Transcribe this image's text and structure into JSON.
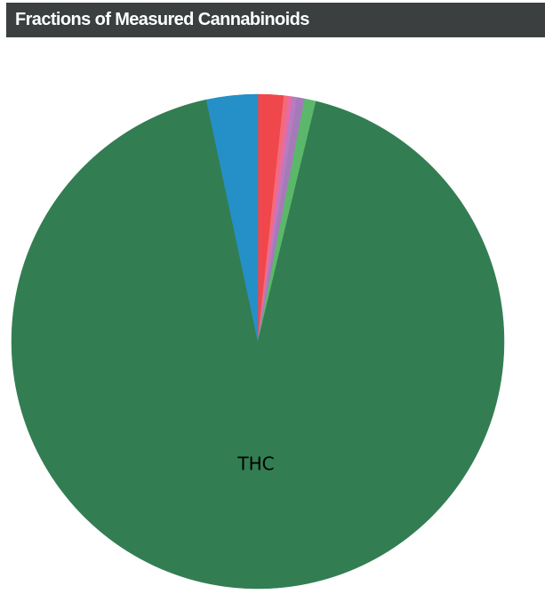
{
  "header": {
    "title": "Fractions of Measured Cannabinoids"
  },
  "chart_data": {
    "type": "pie",
    "title": "",
    "slices": [
      {
        "label": "",
        "value": 1.7,
        "color": "#f0474c"
      },
      {
        "label": "",
        "value": 0.3,
        "color": "#f26b7a"
      },
      {
        "label": "",
        "value": 0.25,
        "color": "#e76aa6"
      },
      {
        "label": "",
        "value": 0.3,
        "color": "#b77bbf"
      },
      {
        "label": "",
        "value": 0.5,
        "color": "#a57ab8"
      },
      {
        "label": "",
        "value": 0.75,
        "color": "#5bb86a"
      },
      {
        "label": "THC",
        "value": 92.85,
        "color": "#337d52"
      },
      {
        "label": "",
        "value": 3.35,
        "color": "#2490c7"
      }
    ],
    "start": "top",
    "direction": "clockwise",
    "legend": "none"
  }
}
